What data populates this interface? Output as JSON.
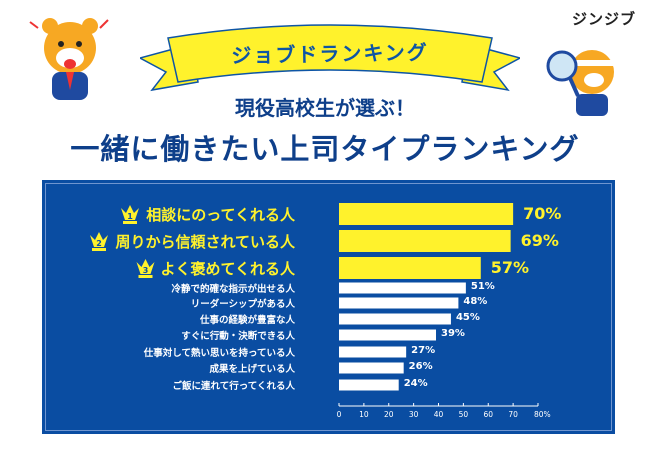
{
  "logo": "ジンジブ",
  "ribbon": "ジョブドランキング",
  "subtitle": "現役高校生が選ぶ！",
  "title": "一緒に働きたい上司タイプランキング",
  "colors": {
    "navy": "#0a4da2",
    "yellow": "#fff22c",
    "white": "#ffffff"
  },
  "chart_data": {
    "type": "bar",
    "orientation": "horizontal",
    "title": "一緒に働きたい上司タイプランキング",
    "categories": [
      "相談にのってくれる人",
      "周りから信頼されている人",
      "よく褒めてくれる人",
      "冷静で的確な指示が出せる人",
      "リーダーシップがある人",
      "仕事の経験が豊富な人",
      "すぐに行動・決断できる人",
      "仕事対して熱い思いを持っている人",
      "成果を上げている人",
      "ご飯に連れて行ってくれる人"
    ],
    "values": [
      70,
      69,
      57,
      51,
      48,
      45,
      39,
      27,
      26,
      24
    ],
    "value_labels": [
      "70%",
      "69%",
      "57%",
      "51%",
      "48%",
      "45%",
      "39%",
      "27%",
      "26%",
      "24%"
    ],
    "ranks": [
      "1",
      "2",
      "3"
    ],
    "xlim": [
      0,
      80
    ],
    "xticks": [
      "0",
      "10",
      "20",
      "30",
      "40",
      "50",
      "60",
      "70",
      "80%"
    ],
    "unit": "%"
  }
}
